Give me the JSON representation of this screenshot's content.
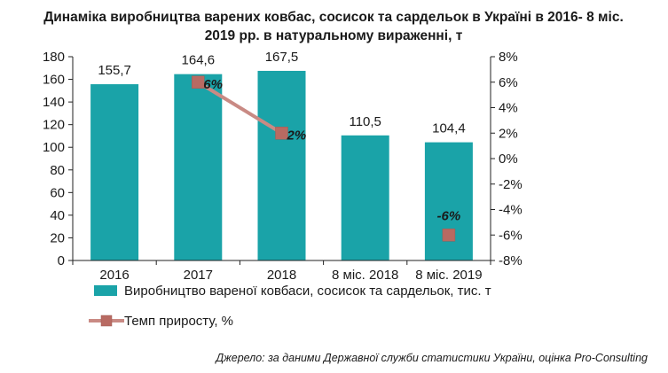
{
  "chart_data": {
    "type": "bar",
    "title_line1": "Динаміка виробництва варених ковбас, сосисок та сардельок в Україні в 2016- 8 міс.",
    "title_line2": "2019 рр. в натуральному вираженні, т",
    "categories": [
      "2016",
      "2017",
      "2018",
      "8 міс. 2018",
      "8 міс. 2019"
    ],
    "series": [
      {
        "name": "Виробництво вареної ковбаси, сосисок та сардельок, тис. т",
        "type": "bar",
        "axis": "left",
        "values": [
          155.7,
          164.6,
          167.5,
          110.5,
          104.4
        ],
        "labels": [
          "155,7",
          "164,6",
          "167,5",
          "110,5",
          "104,4"
        ],
        "color": "#1aa3a8"
      },
      {
        "name": "Темп приросту, %",
        "type": "line",
        "axis": "right",
        "values": [
          null,
          6,
          2,
          null,
          -6
        ],
        "labels": [
          "",
          "6%",
          "2%",
          "",
          "-6%"
        ],
        "color": "#c98a84",
        "marker_color": "#b86a62"
      }
    ],
    "y_left": {
      "min": 0,
      "max": 180,
      "ticks": [
        "0",
        "20",
        "40",
        "60",
        "80",
        "100",
        "120",
        "140",
        "160",
        "180"
      ]
    },
    "y_right": {
      "min": -8,
      "max": 8,
      "ticks": [
        "-8%",
        "-6%",
        "-4%",
        "-2%",
        "0%",
        "2%",
        "4%",
        "6%",
        "8%"
      ]
    },
    "grid": false,
    "legend_position": "bottom"
  },
  "source": "Джерело: за даними Державної служби статистики України, оцінка Pro-Consulting"
}
